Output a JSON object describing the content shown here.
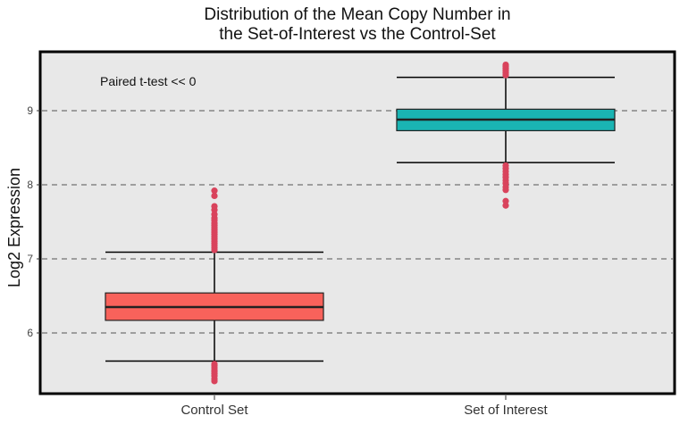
{
  "chart_data": {
    "type": "box",
    "title": "Distribution of the Mean Copy Number in\nthe Set-of-Interest vs the Control-Set",
    "title_line1": "Distribution of the Mean Copy Number in",
    "title_line2": "the Set-of-Interest vs the Control-Set",
    "xlabel": "",
    "ylabel": "Log2 Expression",
    "annotation": "Paired t-test << 0",
    "ylim": [
      5.3,
      9.8
    ],
    "yticks": [
      6,
      7,
      8,
      9
    ],
    "grid": "dashed horizontal",
    "outlier_color": "#d9435c",
    "categories": [
      "Control Set",
      "Set of Interest"
    ],
    "boxes": [
      {
        "label": "Control Set",
        "color": "#f8625b",
        "whisker_low": 5.62,
        "q1": 6.17,
        "median": 6.35,
        "q3": 6.54,
        "whisker_high": 7.09,
        "outliers": [
          5.35,
          5.38,
          5.42,
          5.45,
          5.48,
          5.5,
          5.53,
          5.56,
          5.58,
          7.12,
          7.15,
          7.18,
          7.21,
          7.24,
          7.27,
          7.3,
          7.33,
          7.36,
          7.39,
          7.42,
          7.45,
          7.48,
          7.52,
          7.55,
          7.6,
          7.66,
          7.71,
          7.85,
          7.92
        ]
      },
      {
        "label": "Set of Interest",
        "color": "#1ab4b3",
        "whisker_low": 8.3,
        "q1": 8.73,
        "median": 8.88,
        "q3": 9.02,
        "whisker_high": 9.45,
        "outliers": [
          7.72,
          7.78,
          7.93,
          7.97,
          8.02,
          8.06,
          8.1,
          8.14,
          8.18,
          8.22,
          8.26,
          9.48,
          9.51,
          9.54,
          9.57,
          9.6,
          9.62
        ]
      }
    ]
  }
}
